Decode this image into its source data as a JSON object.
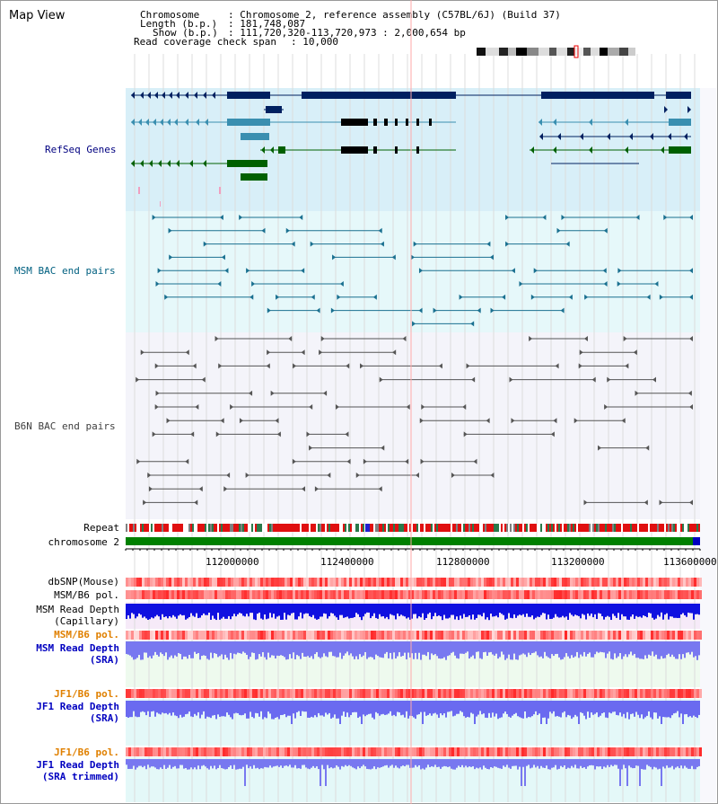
{
  "page": {
    "title": "Map View"
  },
  "info": {
    "chromosome_label": "Chromosome",
    "chromosome_value": ": Chromosome 2, reference assembly (C57BL/6J) (Build 37)",
    "length_label": "Length (b.p.)",
    "length_value": ": 181,748,087",
    "show_label": "Show (b.p.)",
    "show_value": ": 111,720,320-113,720,973 : 2,000,654 bp",
    "coverage_label": "Read coverage check span",
    "coverage_value": ": 10,000"
  },
  "tracks": {
    "refseq": {
      "label": "RefSeq Genes",
      "color": "#000080"
    },
    "msm_bac": {
      "label": "MSM BAC end pairs",
      "color": "#006080"
    },
    "b6n_bac": {
      "label": "B6N BAC end pairs",
      "color": "#404040"
    },
    "repeat": {
      "label": "Repeat"
    },
    "chromosome": {
      "label": "chromosome 2"
    },
    "dbsnp": {
      "label": "dbSNP(Mouse)"
    },
    "msm_b6_pol_1": {
      "label": "MSM/B6 pol."
    },
    "msm_depth_cap": {
      "label": "MSM Read Depth",
      "label2": "(Capillary)"
    },
    "msm_b6_pol_2": {
      "label": "MSM/B6 pol.",
      "color": "#e08000"
    },
    "msm_depth_sra": {
      "label": "MSM Read Depth",
      "label2": "(SRA)",
      "color": "#0000c0"
    },
    "jf1_b6_pol_1": {
      "label": "JF1/B6 pol.",
      "color": "#e08000"
    },
    "jf1_depth_sra": {
      "label": "JF1 Read Depth",
      "label2": "(SRA)",
      "color": "#0000c0"
    },
    "jf1_b6_pol_2": {
      "label": "JF1/B6 pol.",
      "color": "#e08000"
    },
    "jf1_depth_trim": {
      "label": "JF1 Read Depth",
      "label2": "(SRA trimmed)",
      "color": "#0000c0"
    }
  },
  "axis": {
    "ticks": [
      "112000000",
      "112400000",
      "112800000",
      "113200000",
      "113600000"
    ]
  },
  "colors": {
    "refseq_bg": "#d8eff8",
    "msm_bg": "#e6f8fa",
    "b6n_bg": "#f4f4fa",
    "cap_bg": "#f6eaf8",
    "sra_bg": "#eefaee",
    "jf1_bg": "#e4f8f8"
  }
}
